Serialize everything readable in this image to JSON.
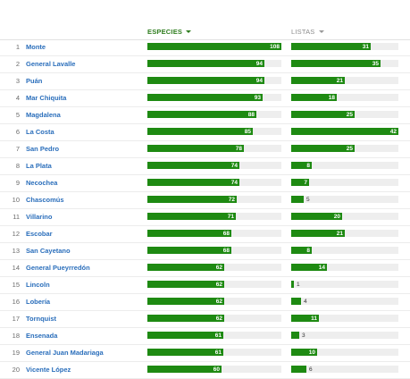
{
  "header": {
    "especies_label": "ESPECIES",
    "listas_label": "LISTAS",
    "sorted_by": "especies"
  },
  "scale": {
    "especies_max": 108,
    "listas_max": 42
  },
  "colors": {
    "bar": "#1e8a12",
    "track": "#eeeeee",
    "link": "#2a6ebb",
    "active_header": "#2e7d1e"
  },
  "rows": [
    {
      "rank": "1",
      "name": "Monte",
      "especies": 108,
      "listas": 31
    },
    {
      "rank": "2",
      "name": "General Lavalle",
      "especies": 94,
      "listas": 35
    },
    {
      "rank": "3",
      "name": "Puán",
      "especies": 94,
      "listas": 21
    },
    {
      "rank": "4",
      "name": "Mar Chiquita",
      "especies": 93,
      "listas": 18
    },
    {
      "rank": "5",
      "name": "Magdalena",
      "especies": 88,
      "listas": 25
    },
    {
      "rank": "6",
      "name": "La Costa",
      "especies": 85,
      "listas": 42
    },
    {
      "rank": "7",
      "name": "San Pedro",
      "especies": 78,
      "listas": 25
    },
    {
      "rank": "8",
      "name": "La Plata",
      "especies": 74,
      "listas": 8
    },
    {
      "rank": "9",
      "name": "Necochea",
      "especies": 74,
      "listas": 7
    },
    {
      "rank": "10",
      "name": "Chascomús",
      "especies": 72,
      "listas": 5
    },
    {
      "rank": "11",
      "name": "Villarino",
      "especies": 71,
      "listas": 20
    },
    {
      "rank": "12",
      "name": "Escobar",
      "especies": 68,
      "listas": 21
    },
    {
      "rank": "13",
      "name": "San Cayetano",
      "especies": 68,
      "listas": 8
    },
    {
      "rank": "14",
      "name": "General Pueyrredón",
      "especies": 62,
      "listas": 14
    },
    {
      "rank": "15",
      "name": "Lincoln",
      "especies": 62,
      "listas": 1
    },
    {
      "rank": "16",
      "name": "Lobería",
      "especies": 62,
      "listas": 4
    },
    {
      "rank": "17",
      "name": "Tornquist",
      "especies": 62,
      "listas": 11
    },
    {
      "rank": "18",
      "name": "Ensenada",
      "especies": 61,
      "listas": 3
    },
    {
      "rank": "19",
      "name": "General Juan Madariaga",
      "especies": 61,
      "listas": 10
    },
    {
      "rank": "20",
      "name": "Vicente López",
      "especies": 60,
      "listas": 6
    }
  ]
}
